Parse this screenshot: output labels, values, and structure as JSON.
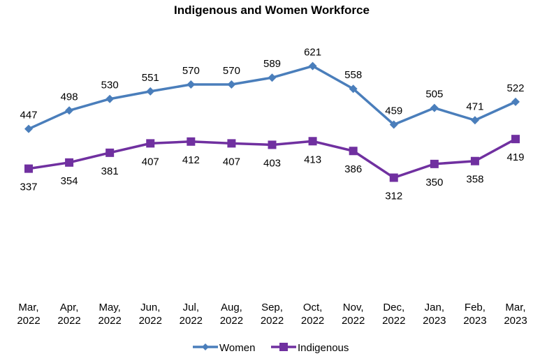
{
  "chart_data": {
    "type": "line",
    "title": "Indigenous and Women Workforce",
    "categories": [
      [
        "Mar,",
        "2022"
      ],
      [
        "Apr,",
        "2022"
      ],
      [
        "May,",
        "2022"
      ],
      [
        "Jun,",
        "2022"
      ],
      [
        "Jul,",
        "2022"
      ],
      [
        "Aug,",
        "2022"
      ],
      [
        "Sep,",
        "2022"
      ],
      [
        "Oct,",
        "2022"
      ],
      [
        "Nov,",
        "2022"
      ],
      [
        "Dec,",
        "2022"
      ],
      [
        "Jan,",
        "2023"
      ],
      [
        "Feb,",
        "2023"
      ],
      [
        "Mar,",
        "2023"
      ]
    ],
    "series": [
      {
        "name": "Women",
        "color": "#4A7EBB",
        "marker": "diamond",
        "label_position": "above",
        "values": [
          447,
          498,
          530,
          551,
          570,
          570,
          589,
          621,
          558,
          459,
          505,
          471,
          522
        ]
      },
      {
        "name": "Indigenous",
        "color": "#7030A0",
        "marker": "square",
        "label_position": "below",
        "values": [
          337,
          354,
          381,
          407,
          412,
          407,
          403,
          413,
          386,
          312,
          350,
          358,
          419
        ]
      }
    ],
    "ylim": [
      0,
      800
    ],
    "y_axis_visible": false,
    "grid": false,
    "legend": "bottom"
  }
}
